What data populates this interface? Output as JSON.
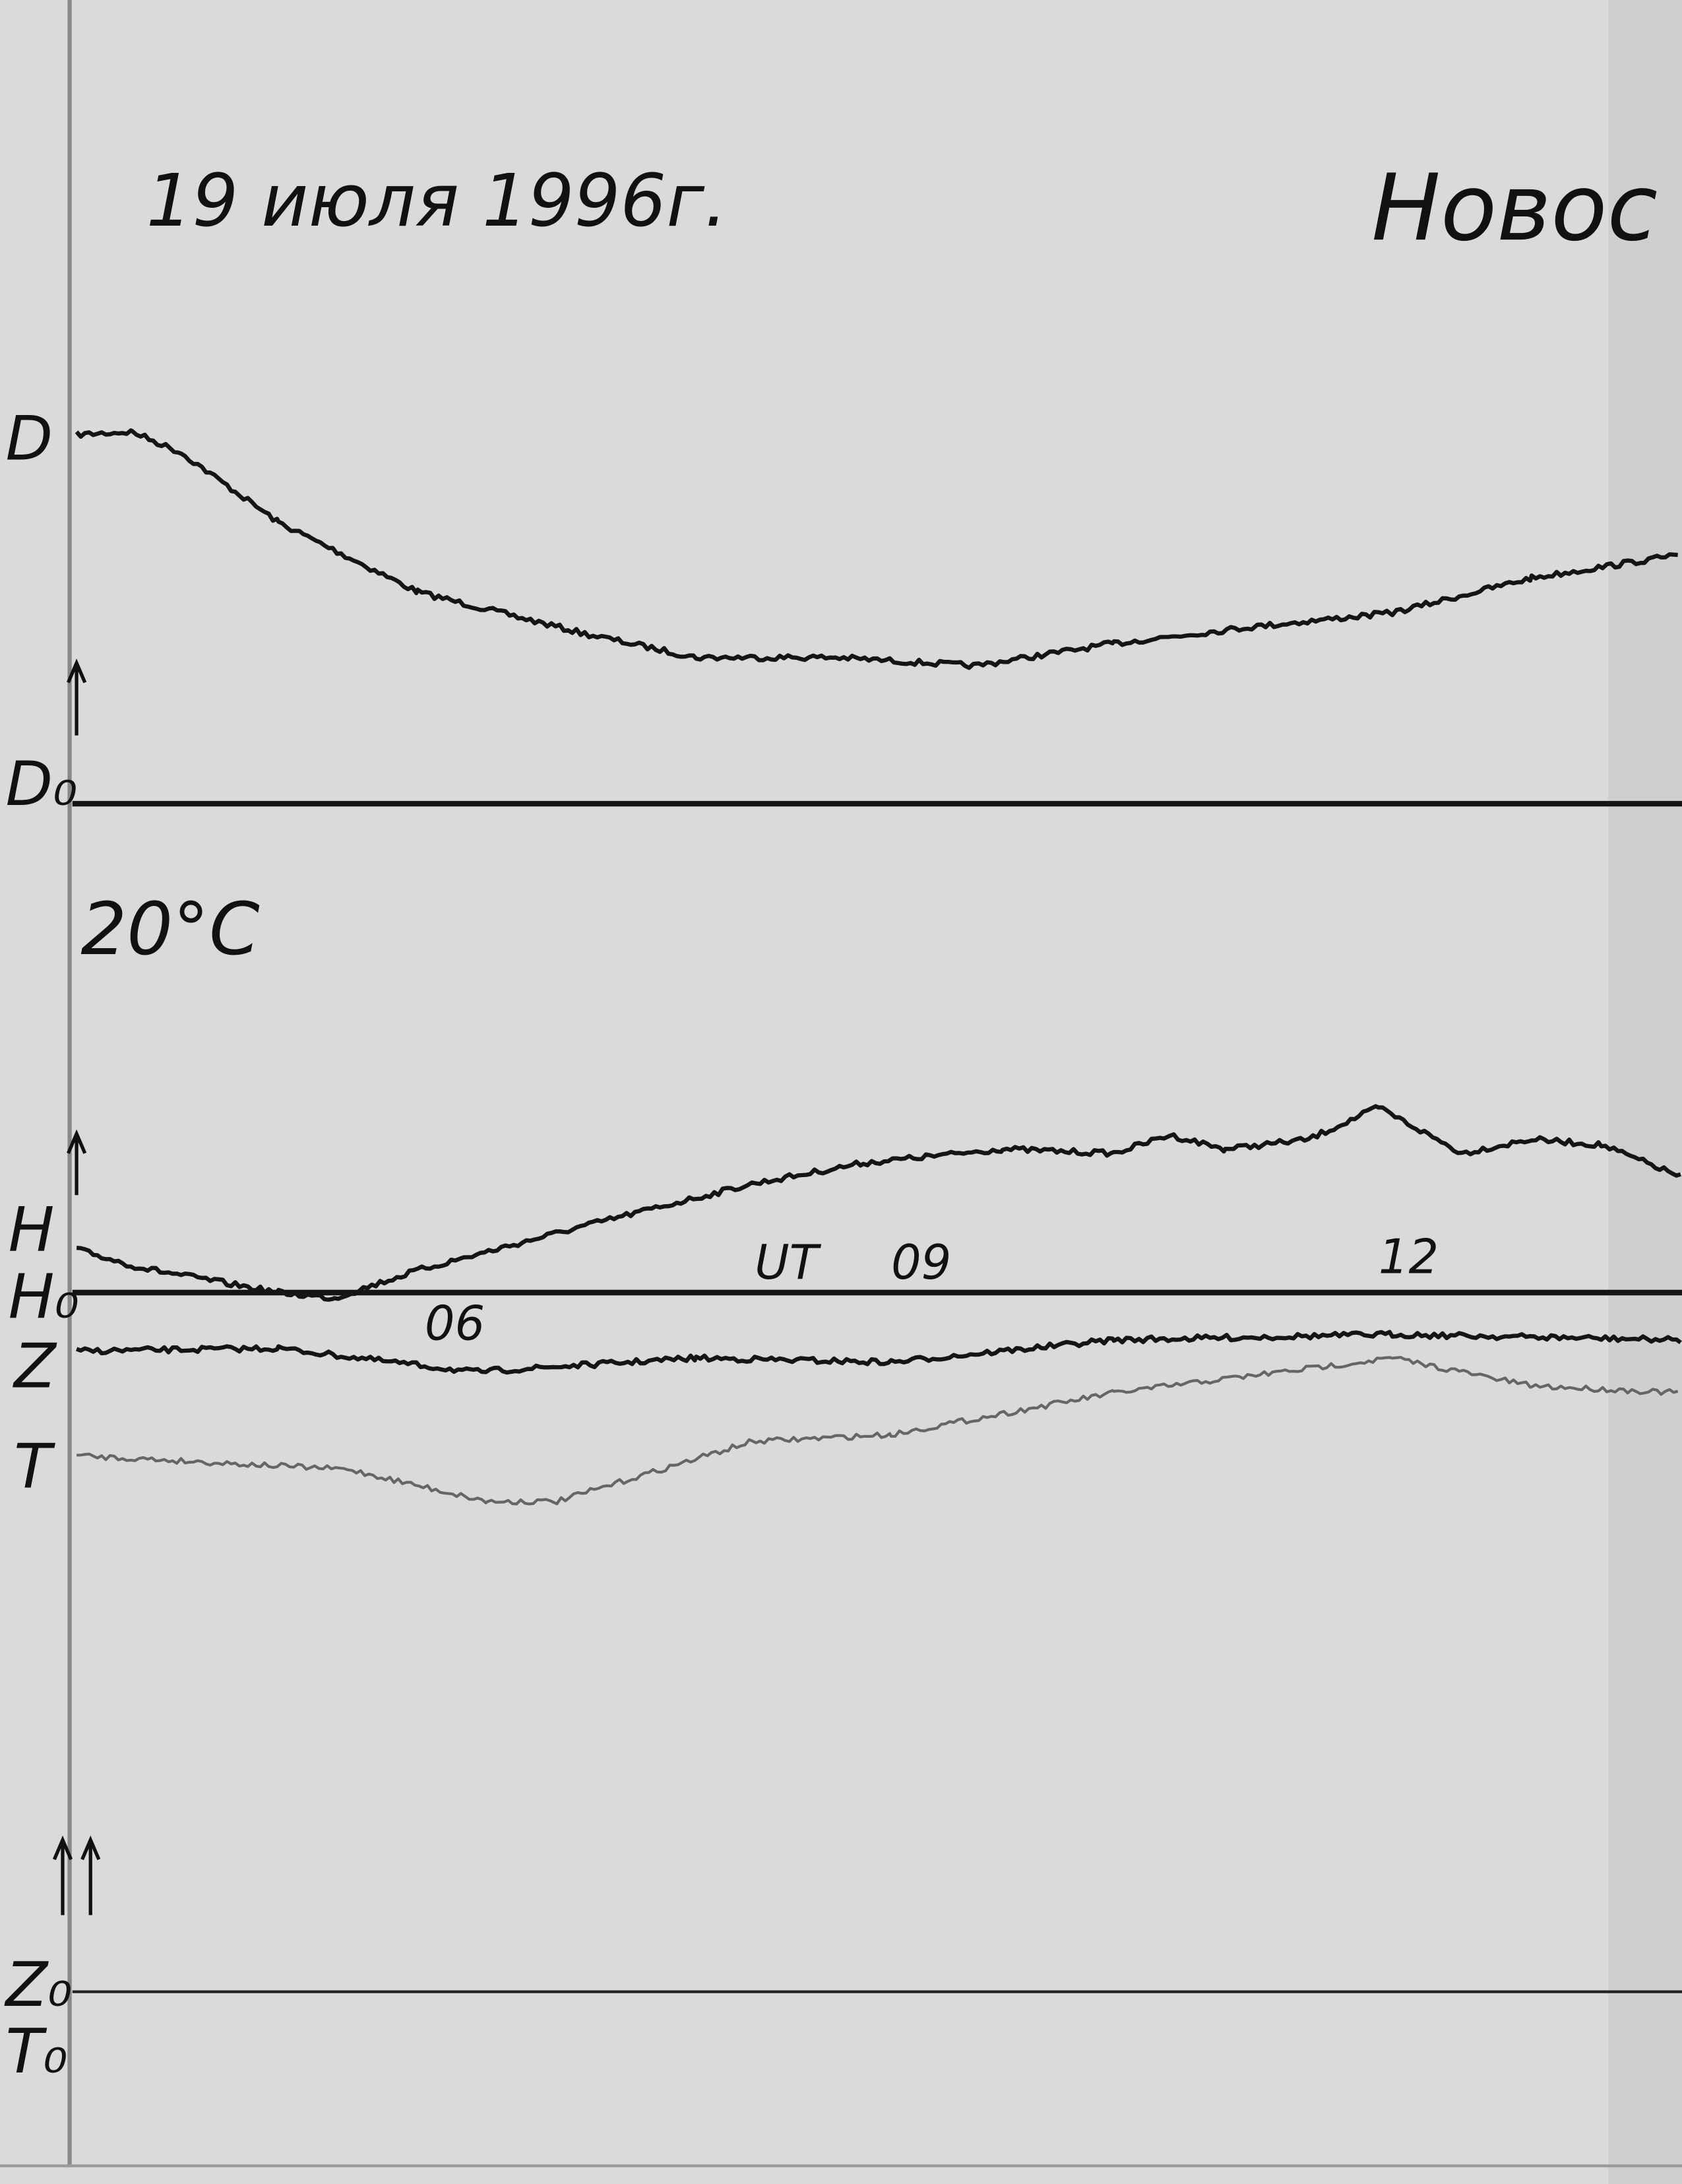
{
  "header": {
    "date": "19 июля 1996г.",
    "station": "Новос",
    "temperature": "20°C"
  },
  "channels": {
    "D": "D",
    "D0": "D₀",
    "H": "H",
    "H0": "H₀",
    "Z": "Z",
    "T": "T",
    "Z0": "Z₀",
    "T0": "T₀"
  },
  "time_axis": {
    "label": "UT",
    "hours": [
      "06",
      "09",
      "12"
    ]
  }
}
